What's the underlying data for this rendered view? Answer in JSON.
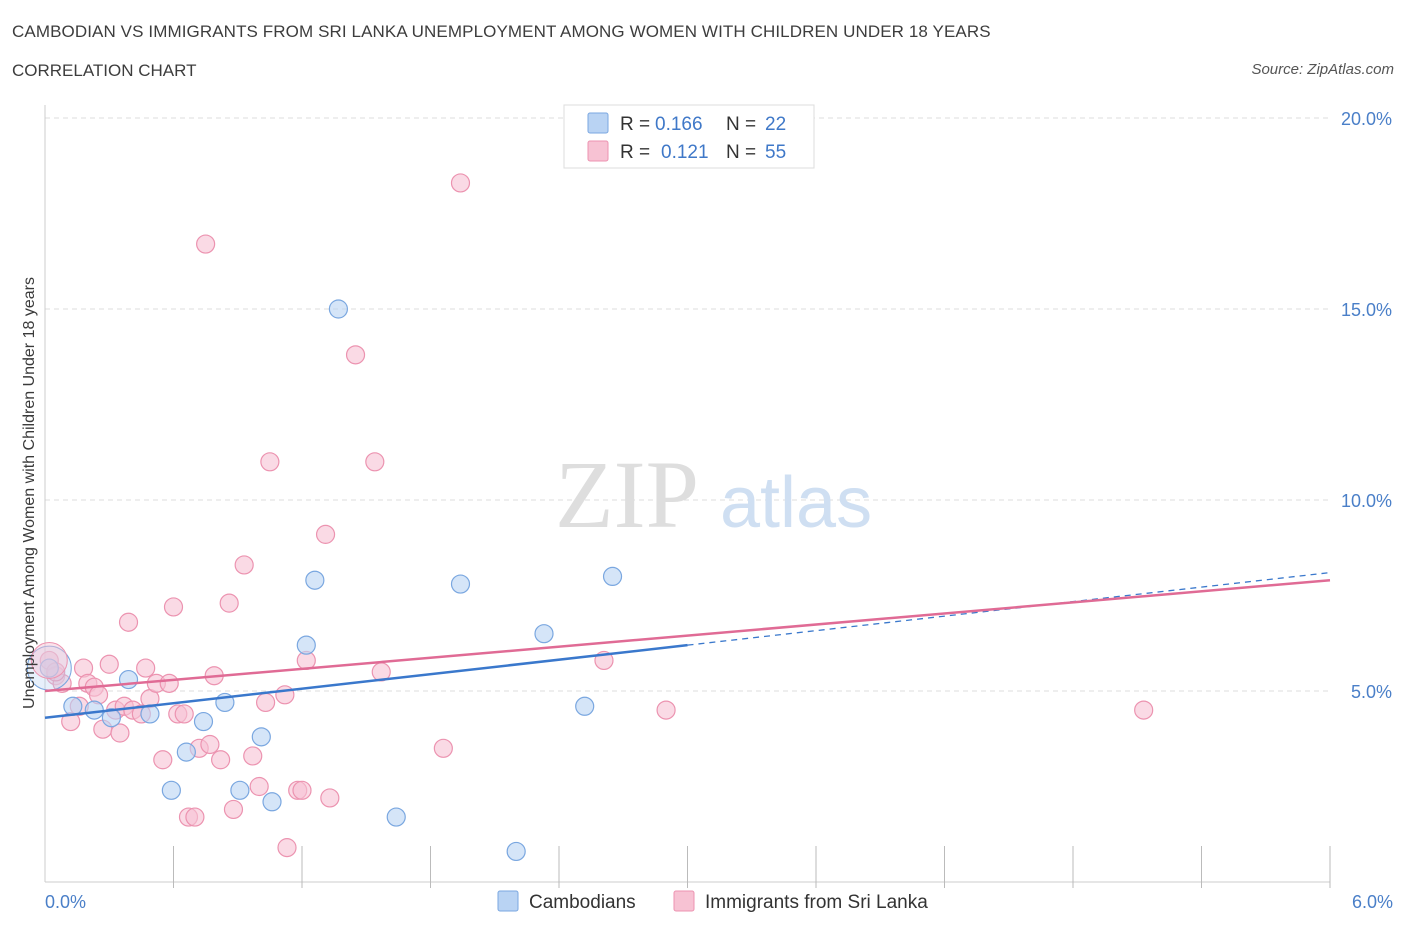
{
  "header": {
    "title": "CAMBODIAN VS IMMIGRANTS FROM SRI LANKA UNEMPLOYMENT AMONG WOMEN WITH CHILDREN UNDER 18 YEARS",
    "subtitle": "CORRELATION CHART",
    "source": "Source: ZipAtlas.com"
  },
  "watermark": {
    "zip": "ZIP",
    "atlas": "atlas"
  },
  "colors": {
    "cambodians_fill": "#b9d3f3",
    "cambodians_stroke": "#7aa7e0",
    "cambodians_line": "#3a78cc",
    "srilanka_fill": "#f7c2d3",
    "srilanka_stroke": "#ec93b0",
    "srilanka_line": "#e06b95",
    "grid": "#dddddd",
    "tick_text": "#4a7fc8"
  },
  "legend_top": {
    "rows": [
      {
        "r_label": "R =",
        "r_value": "0.166",
        "n_label": "N =",
        "n_value": "22"
      },
      {
        "r_label": "R =",
        "r_value": "0.121",
        "n_label": "N =",
        "n_value": "55"
      }
    ]
  },
  "legend_bottom": {
    "items": [
      "Cambodians",
      "Immigrants from Sri Lanka"
    ]
  },
  "chart_data": {
    "type": "scatter",
    "ylabel": "Unemployment Among Women with Children Under 18 years",
    "xlim": [
      0,
      6
    ],
    "ylim": [
      0,
      20
    ],
    "x_tick_labels": [
      "0.0%",
      "6.0%"
    ],
    "y_ticks": [
      5,
      10,
      15,
      20
    ],
    "y_tick_labels": [
      "5.0%",
      "10.0%",
      "15.0%",
      "20.0%"
    ],
    "grid": true,
    "legend": "top-center",
    "series": [
      {
        "name": "Cambodians",
        "r": 0.166,
        "n": 22,
        "trend": {
          "x": [
            0,
            3.0
          ],
          "y": [
            4.3,
            6.2
          ]
        },
        "trend_extension": {
          "x": [
            3.0,
            6.0
          ],
          "y": [
            6.2,
            8.1
          ]
        },
        "points": [
          [
            0.02,
            5.6
          ],
          [
            0.13,
            4.6
          ],
          [
            0.23,
            4.5
          ],
          [
            0.31,
            4.3
          ],
          [
            0.39,
            5.3
          ],
          [
            0.49,
            4.4
          ],
          [
            0.59,
            2.4
          ],
          [
            0.66,
            3.4
          ],
          [
            0.74,
            4.2
          ],
          [
            0.84,
            4.7
          ],
          [
            0.91,
            2.4
          ],
          [
            1.01,
            3.8
          ],
          [
            1.06,
            2.1
          ],
          [
            1.22,
            6.2
          ],
          [
            1.26,
            7.9
          ],
          [
            1.37,
            15.0
          ],
          [
            1.64,
            1.7
          ],
          [
            1.94,
            7.8
          ],
          [
            2.2,
            0.8
          ],
          [
            2.33,
            6.5
          ],
          [
            2.52,
            4.6
          ],
          [
            2.65,
            8.0
          ]
        ]
      },
      {
        "name": "Immigrants from Sri Lanka",
        "r": 0.121,
        "n": 55,
        "trend": {
          "x": [
            0,
            6.0
          ],
          "y": [
            5.0,
            7.9
          ]
        },
        "points": [
          [
            0.02,
            5.8
          ],
          [
            0.05,
            5.4
          ],
          [
            0.08,
            5.2
          ],
          [
            0.12,
            4.2
          ],
          [
            0.16,
            4.6
          ],
          [
            0.18,
            5.6
          ],
          [
            0.2,
            5.2
          ],
          [
            0.23,
            5.1
          ],
          [
            0.25,
            4.9
          ],
          [
            0.27,
            4.0
          ],
          [
            0.3,
            5.7
          ],
          [
            0.33,
            4.5
          ],
          [
            0.35,
            3.9
          ],
          [
            0.37,
            4.6
          ],
          [
            0.39,
            6.8
          ],
          [
            0.41,
            4.5
          ],
          [
            0.45,
            4.4
          ],
          [
            0.47,
            5.6
          ],
          [
            0.49,
            4.8
          ],
          [
            0.52,
            5.2
          ],
          [
            0.55,
            3.2
          ],
          [
            0.58,
            5.2
          ],
          [
            0.6,
            7.2
          ],
          [
            0.62,
            4.4
          ],
          [
            0.65,
            4.4
          ],
          [
            0.67,
            1.7
          ],
          [
            0.7,
            1.7
          ],
          [
            0.72,
            3.5
          ],
          [
            0.75,
            16.7
          ],
          [
            0.77,
            3.6
          ],
          [
            0.79,
            5.4
          ],
          [
            0.82,
            3.2
          ],
          [
            0.86,
            7.3
          ],
          [
            0.88,
            1.9
          ],
          [
            0.93,
            8.3
          ],
          [
            0.97,
            3.3
          ],
          [
            1.0,
            2.5
          ],
          [
            1.03,
            4.7
          ],
          [
            1.05,
            11.0
          ],
          [
            1.12,
            4.9
          ],
          [
            1.13,
            0.9
          ],
          [
            1.18,
            2.4
          ],
          [
            1.2,
            2.4
          ],
          [
            1.22,
            5.8
          ],
          [
            1.31,
            9.1
          ],
          [
            1.33,
            2.2
          ],
          [
            1.45,
            13.8
          ],
          [
            1.54,
            11.0
          ],
          [
            1.57,
            5.5
          ],
          [
            1.86,
            3.5
          ],
          [
            1.94,
            18.3
          ],
          [
            2.61,
            5.8
          ],
          [
            2.9,
            4.5
          ],
          [
            5.13,
            4.5
          ],
          [
            0.05,
            5.5
          ]
        ]
      }
    ]
  }
}
